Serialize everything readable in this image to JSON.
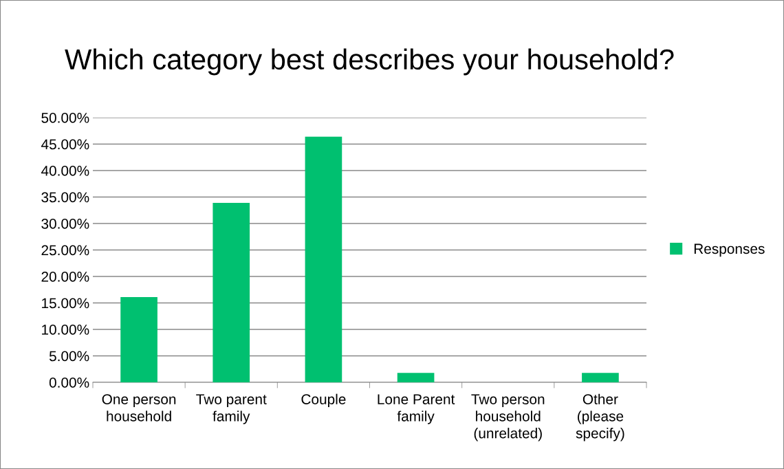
{
  "chart_data": {
    "type": "bar",
    "title": "Which category best describes your household?",
    "categories": [
      "One person\nhousehold",
      "Two parent\nfamily",
      "Couple",
      "Lone Parent\nfamily",
      "Two person\nhousehold\n(unrelated)",
      "Other\n(please\nspecify)"
    ],
    "series": [
      {
        "name": "Responses",
        "color": "#00c070",
        "values": [
          16.1,
          33.9,
          46.4,
          1.8,
          0,
          1.8
        ]
      }
    ],
    "ylim": [
      0,
      50
    ],
    "yticks": [
      {
        "value": 0,
        "label": "0.00%"
      },
      {
        "value": 5,
        "label": "5.00%"
      },
      {
        "value": 10,
        "label": "10.00%"
      },
      {
        "value": 15,
        "label": "15.00%"
      },
      {
        "value": 20,
        "label": "20.00%"
      },
      {
        "value": 25,
        "label": "25.00%"
      },
      {
        "value": 30,
        "label": "30.00%"
      },
      {
        "value": 35,
        "label": "35.00%"
      },
      {
        "value": 40,
        "label": "40.00%"
      },
      {
        "value": 45,
        "label": "45.00%"
      },
      {
        "value": 50,
        "label": "50.00%"
      }
    ],
    "grid": "y",
    "legend": "right"
  }
}
